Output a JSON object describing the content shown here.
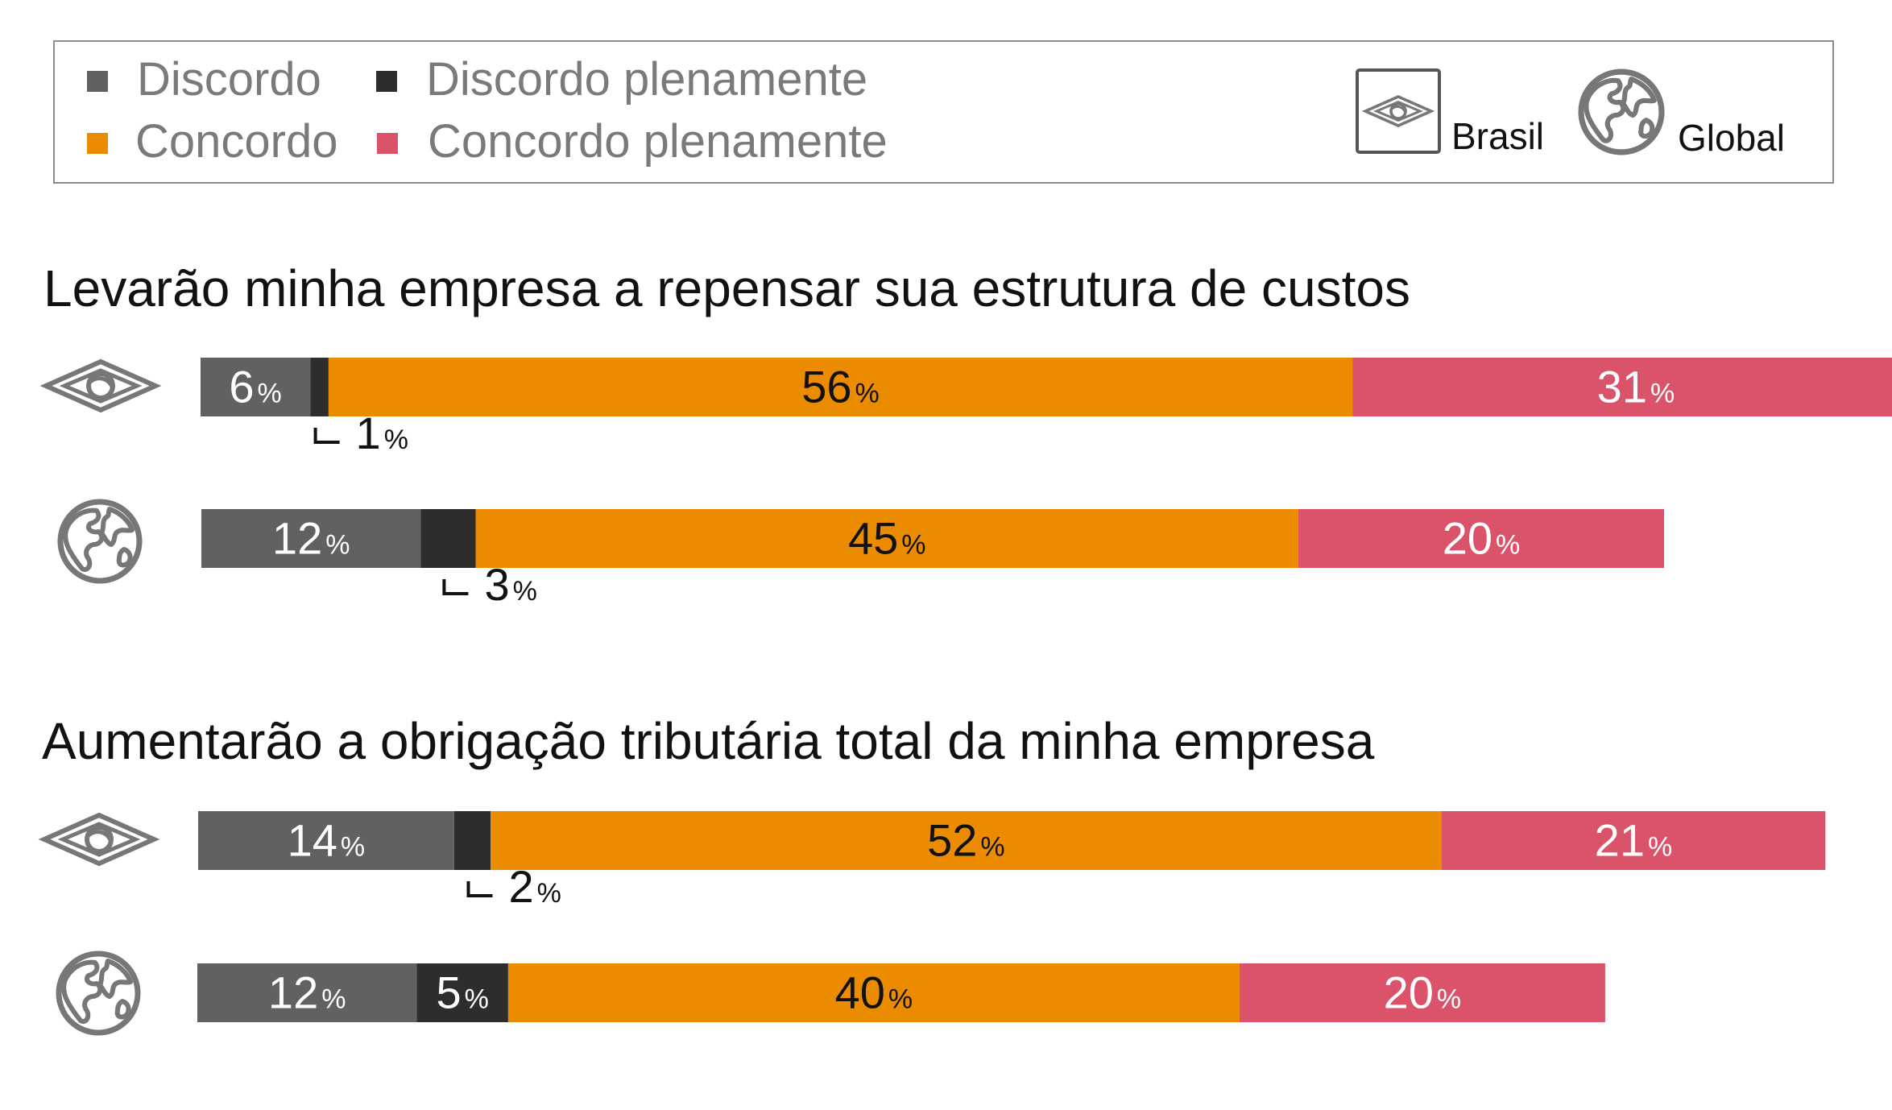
{
  "chart_data": {
    "type": "bar",
    "orientation": "horizontal",
    "stacked": true,
    "unit": "%",
    "legend": {
      "placement": "top",
      "entries": [
        {
          "key": "discordo",
          "label": "Discordo",
          "color": "#616161"
        },
        {
          "key": "discordo_plenamente",
          "label": "Discordo plenamente",
          "color": "#2d2d2d"
        },
        {
          "key": "concordo",
          "label": "Concordo",
          "color": "#eb8c00"
        },
        {
          "key": "concordo_plenamente",
          "label": "Concordo plenamente",
          "color": "#db536a"
        }
      ],
      "icons": [
        {
          "icon": "brazil-flag-icon",
          "label": "Brasil"
        },
        {
          "icon": "globe-icon",
          "label": "Global"
        }
      ]
    },
    "panels": [
      {
        "title": "Levarão minha empresa a repensar sua estrutura de custos",
        "rows": [
          {
            "icon": "brazil-flag-icon",
            "values": {
              "discordo": 6,
              "discordo_plenamente": 1,
              "concordo": 56,
              "concordo_plenamente": 31
            }
          },
          {
            "icon": "globe-icon",
            "values": {
              "discordo": 12,
              "discordo_plenamente": 3,
              "concordo": 45,
              "concordo_plenamente": 20
            }
          }
        ]
      },
      {
        "title": "Aumentarão a obrigação tributária total da minha empresa",
        "rows": [
          {
            "icon": "brazil-flag-icon",
            "values": {
              "discordo": 14,
              "discordo_plenamente": 2,
              "concordo": 52,
              "concordo_plenamente": 21
            }
          },
          {
            "icon": "globe-icon",
            "values": {
              "discordo": 12,
              "discordo_plenamente": 5,
              "concordo": 40,
              "concordo_plenamente": 20
            }
          }
        ]
      }
    ]
  }
}
